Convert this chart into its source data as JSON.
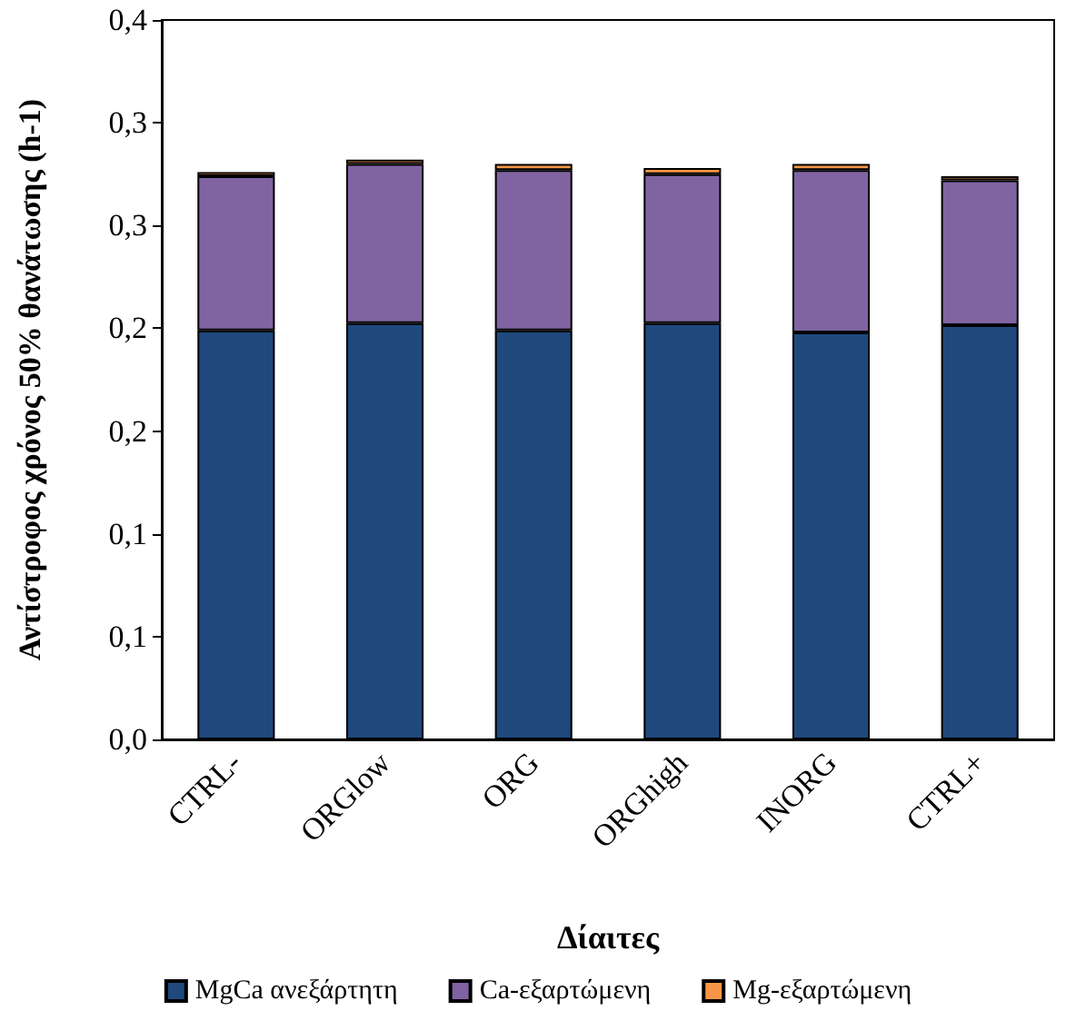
{
  "chart_data": {
    "type": "bar",
    "stacked": true,
    "xlabel": "Δίαιτες",
    "ylabel": "Αντίστροφος χρόνος 50% θανάτωσης (h-1)",
    "categories": [
      "CTRL-",
      "ORGlow",
      "ORG",
      "ORGhigh",
      "INORG",
      "CTRL+"
    ],
    "series": [
      {
        "name": "MgCa ανεξάρτητη",
        "color": "#1f497d",
        "values": [
          0.199,
          0.2025,
          0.199,
          0.2025,
          0.198,
          0.2015
        ]
      },
      {
        "name": "Ca-εξαρτώμενη",
        "color": "#8064a2",
        "values": [
          0.075,
          0.0775,
          0.078,
          0.0725,
          0.079,
          0.0705
        ]
      },
      {
        "name": "Mg-εξαρτώμενη",
        "color": "#f79646",
        "values": [
          0.002,
          0.002,
          0.003,
          0.003,
          0.003,
          0.002
        ]
      }
    ],
    "ylim": [
      0,
      0.35
    ],
    "yticks": [
      {
        "value": 0,
        "label": "0,0"
      },
      {
        "value": 0.05,
        "label": "0,1"
      },
      {
        "value": 0.1,
        "label": "0,1"
      },
      {
        "value": 0.15,
        "label": "0,2"
      },
      {
        "value": 0.2,
        "label": "0,2"
      },
      {
        "value": 0.25,
        "label": "0,3"
      },
      {
        "value": 0.3,
        "label": "0,3"
      },
      {
        "value": 0.35,
        "label": "0,4"
      }
    ],
    "grid": false,
    "legend": "bottom"
  }
}
